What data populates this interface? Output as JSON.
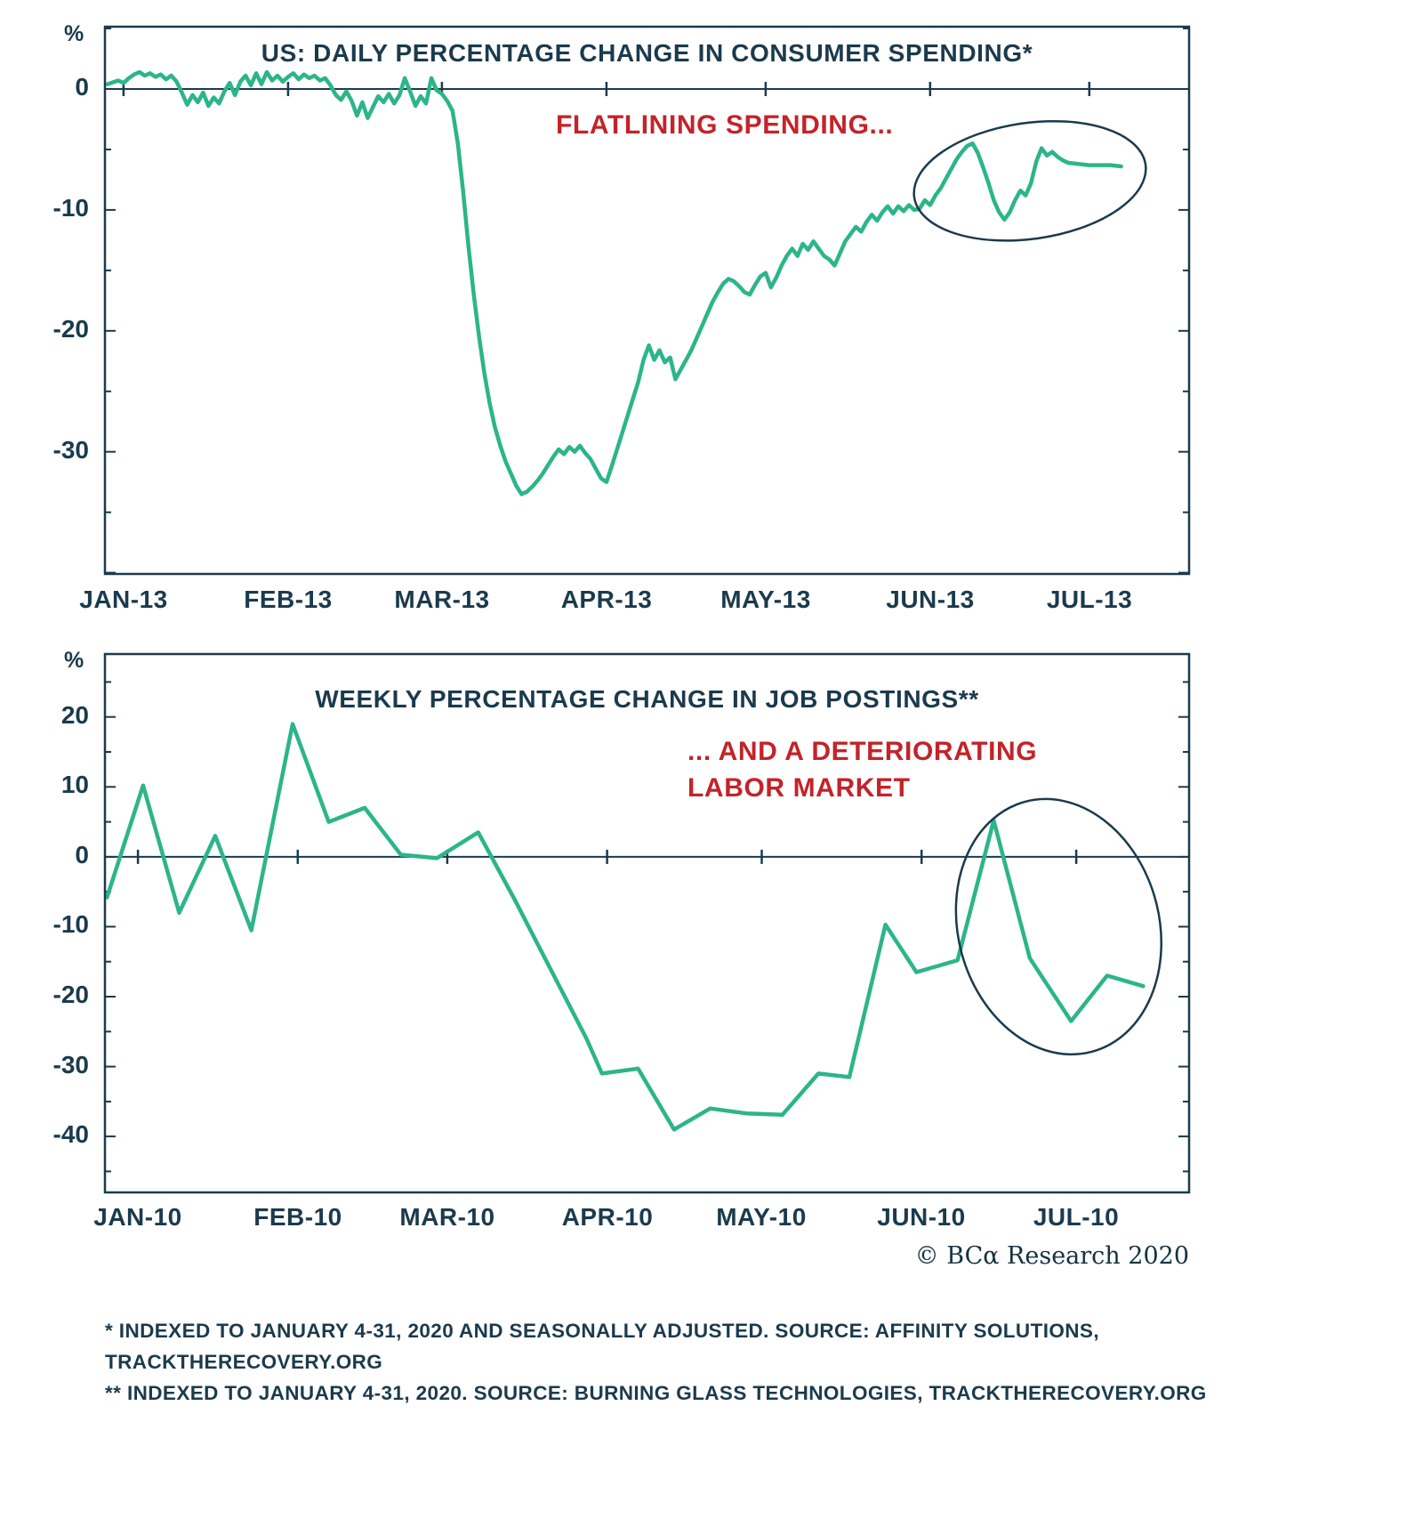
{
  "palette": {
    "line_green": "#2cb589",
    "navy": "#1b3a4d",
    "annotation_red": "#c3232a",
    "background": "#ffffff"
  },
  "chart_data": [
    {
      "type": "line",
      "title": "US: DAILY PERCENTAGE CHANGE IN CONSUMER SPENDING*",
      "unit_label": "%",
      "annotation": "FLATLINING SPENDING...",
      "line_color": "#2cb589",
      "legend_position": "none",
      "grid": false,
      "x_axis": {
        "tick_labels": [
          "JAN-13",
          "FEB-13",
          "MAR-13",
          "APR-13",
          "MAY-13",
          "JUN-13",
          "JUL-13"
        ],
        "tick_days": [
          0,
          31,
          60,
          91,
          121,
          152,
          182
        ],
        "range_days": [
          -3.5,
          200.8
        ]
      },
      "y_axis": {
        "ticks": [
          0,
          -10,
          -20,
          -30
        ],
        "range": [
          -40.1,
          5.15
        ]
      },
      "series": [
        {
          "name": "Daily percentage change in consumer spending",
          "id": "spending-line",
          "points": [
            [
              -3,
              0.4
            ],
            [
              -1,
              0.7
            ],
            [
              0,
              0.5
            ],
            [
              1,
              0.9
            ],
            [
              2,
              1.2
            ],
            [
              3,
              1.4
            ],
            [
              4,
              1.1
            ],
            [
              5,
              1.3
            ],
            [
              6,
              1.0
            ],
            [
              7,
              1.2
            ],
            [
              8,
              0.8
            ],
            [
              9,
              1.1
            ],
            [
              10,
              0.6
            ],
            [
              11,
              -0.3
            ],
            [
              12,
              -1.3
            ],
            [
              13,
              -0.5
            ],
            [
              14,
              -1.1
            ],
            [
              15,
              -0.3
            ],
            [
              16,
              -1.4
            ],
            [
              17,
              -0.7
            ],
            [
              18,
              -1.2
            ],
            [
              19,
              -0.2
            ],
            [
              20,
              0.5
            ],
            [
              21,
              -0.5
            ],
            [
              22,
              0.6
            ],
            [
              23,
              1.1
            ],
            [
              24,
              0.3
            ],
            [
              25,
              1.3
            ],
            [
              26,
              0.4
            ],
            [
              27,
              1.4
            ],
            [
              28,
              0.7
            ],
            [
              29,
              1.1
            ],
            [
              30,
              0.6
            ],
            [
              31,
              1.0
            ],
            [
              32,
              1.3
            ],
            [
              33,
              0.8
            ],
            [
              34,
              1.2
            ],
            [
              35,
              0.9
            ],
            [
              36,
              1.1
            ],
            [
              37,
              0.7
            ],
            [
              38,
              0.9
            ],
            [
              39,
              0.3
            ],
            [
              40,
              -0.5
            ],
            [
              41,
              -0.9
            ],
            [
              42,
              -0.2
            ],
            [
              43,
              -1.0
            ],
            [
              44,
              -2.2
            ],
            [
              45,
              -1.1
            ],
            [
              46,
              -2.4
            ],
            [
              47,
              -1.5
            ],
            [
              48,
              -0.6
            ],
            [
              49,
              -1.1
            ],
            [
              50,
              -0.4
            ],
            [
              51,
              -1.2
            ],
            [
              52,
              -0.5
            ],
            [
              53,
              0.9
            ],
            [
              54,
              -0.2
            ],
            [
              55,
              -1.4
            ],
            [
              56,
              -0.6
            ],
            [
              57,
              -1.2
            ],
            [
              58,
              0.9
            ],
            [
              59,
              -0.1
            ],
            [
              60,
              -0.4
            ],
            [
              61,
              -1.0
            ],
            [
              62,
              -1.8
            ],
            [
              63,
              -4.5
            ],
            [
              64,
              -8.5
            ],
            [
              65,
              -13.0
            ],
            [
              66,
              -17.0
            ],
            [
              67,
              -20.5
            ],
            [
              68,
              -23.5
            ],
            [
              69,
              -26.0
            ],
            [
              70,
              -28.0
            ],
            [
              71,
              -29.5
            ],
            [
              72,
              -30.8
            ],
            [
              73,
              -31.8
            ],
            [
              74,
              -32.8
            ],
            [
              75,
              -33.5
            ],
            [
              76,
              -33.3
            ],
            [
              77,
              -32.9
            ],
            [
              78,
              -32.4
            ],
            [
              79,
              -31.8
            ],
            [
              80,
              -31.1
            ],
            [
              81,
              -30.4
            ],
            [
              82,
              -29.8
            ],
            [
              83,
              -30.2
            ],
            [
              84,
              -29.6
            ],
            [
              85,
              -30.0
            ],
            [
              86,
              -29.5
            ],
            [
              87,
              -30.1
            ],
            [
              88,
              -30.6
            ],
            [
              89,
              -31.4
            ],
            [
              90,
              -32.2
            ],
            [
              91,
              -32.5
            ],
            [
              92,
              -31.2
            ],
            [
              93,
              -29.8
            ],
            [
              94,
              -28.4
            ],
            [
              95,
              -27.0
            ],
            [
              96,
              -25.6
            ],
            [
              97,
              -24.2
            ],
            [
              98,
              -22.4
            ],
            [
              99,
              -21.2
            ],
            [
              100,
              -22.4
            ],
            [
              101,
              -21.6
            ],
            [
              102,
              -22.6
            ],
            [
              103,
              -22.2
            ],
            [
              104,
              -24.0
            ],
            [
              105,
              -23.2
            ],
            [
              106,
              -22.4
            ],
            [
              107,
              -21.6
            ],
            [
              108,
              -20.6
            ],
            [
              109,
              -19.6
            ],
            [
              110,
              -18.6
            ],
            [
              111,
              -17.6
            ],
            [
              112,
              -16.8
            ],
            [
              113,
              -16.1
            ],
            [
              114,
              -15.7
            ],
            [
              115,
              -15.9
            ],
            [
              116,
              -16.3
            ],
            [
              117,
              -16.8
            ],
            [
              118,
              -17.0
            ],
            [
              119,
              -16.2
            ],
            [
              120,
              -15.5
            ],
            [
              121,
              -15.2
            ],
            [
              122,
              -16.4
            ],
            [
              123,
              -15.6
            ],
            [
              124,
              -14.6
            ],
            [
              125,
              -13.8
            ],
            [
              126,
              -13.2
            ],
            [
              127,
              -13.8
            ],
            [
              128,
              -12.8
            ],
            [
              129,
              -13.3
            ],
            [
              130,
              -12.6
            ],
            [
              131,
              -13.2
            ],
            [
              132,
              -13.8
            ],
            [
              133,
              -14.1
            ],
            [
              134,
              -14.6
            ],
            [
              135,
              -13.6
            ],
            [
              136,
              -12.6
            ],
            [
              137,
              -12.0
            ],
            [
              138,
              -11.4
            ],
            [
              139,
              -11.8
            ],
            [
              140,
              -11.0
            ],
            [
              141,
              -10.4
            ],
            [
              142,
              -10.9
            ],
            [
              143,
              -10.2
            ],
            [
              144,
              -9.7
            ],
            [
              145,
              -10.3
            ],
            [
              146,
              -9.7
            ],
            [
              147,
              -10.1
            ],
            [
              148,
              -9.6
            ],
            [
              149,
              -10.0
            ],
            [
              150,
              -9.9
            ],
            [
              151,
              -9.2
            ],
            [
              152,
              -9.6
            ],
            [
              153,
              -8.8
            ],
            [
              154,
              -8.2
            ],
            [
              155,
              -7.4
            ],
            [
              156,
              -6.6
            ],
            [
              157,
              -5.8
            ],
            [
              158,
              -5.2
            ],
            [
              159,
              -4.7
            ],
            [
              160,
              -4.5
            ],
            [
              161,
              -5.3
            ],
            [
              162,
              -6.5
            ],
            [
              163,
              -7.8
            ],
            [
              164,
              -9.2
            ],
            [
              165,
              -10.2
            ],
            [
              166,
              -10.8
            ],
            [
              167,
              -10.2
            ],
            [
              168,
              -9.2
            ],
            [
              169,
              -8.4
            ],
            [
              170,
              -8.8
            ],
            [
              171,
              -7.8
            ],
            [
              172,
              -6.0
            ],
            [
              173,
              -4.9
            ],
            [
              174,
              -5.5
            ],
            [
              175,
              -5.2
            ],
            [
              176,
              -5.6
            ],
            [
              177,
              -5.9
            ],
            [
              178,
              -6.1
            ],
            [
              180,
              -6.2
            ],
            [
              182,
              -6.3
            ],
            [
              184,
              -6.3
            ],
            [
              186,
              -6.3
            ],
            [
              188,
              -6.4
            ]
          ]
        }
      ],
      "highlight_ellipse": {
        "center_day": 170.8,
        "center_val": -7.6,
        "rx_days": 22,
        "ry_units": 4.8,
        "rotate_deg": -8
      }
    },
    {
      "type": "line",
      "title": "WEEKLY PERCENTAGE CHANGE IN JOB POSTINGS**",
      "unit_label": "%",
      "annotation_lines": [
        "... AND A DETERIORATING",
        "LABOR MARKET"
      ],
      "line_color": "#2cb589",
      "legend_position": "none",
      "grid": false,
      "x_axis": {
        "tick_labels": [
          "JAN-10",
          "FEB-10",
          "MAR-10",
          "APR-10",
          "MAY-10",
          "JUN-10",
          "JUL-10"
        ],
        "tick_days": [
          0,
          31,
          60,
          91,
          121,
          152,
          182
        ],
        "range_days": [
          -6.4,
          203.9
        ]
      },
      "y_axis": {
        "ticks": [
          20,
          10,
          0,
          -10,
          -20,
          -30,
          -40
        ],
        "range": [
          -48,
          29
        ]
      },
      "series": [
        {
          "name": "Weekly percentage change in job postings",
          "id": "job-postings-line",
          "points": [
            [
              -6,
              -5.8
            ],
            [
              1,
              10.2
            ],
            [
              8,
              -8.0
            ],
            [
              15,
              3.0
            ],
            [
              22,
              -10.5
            ],
            [
              30,
              19.0
            ],
            [
              37,
              5.0
            ],
            [
              44,
              7.0
            ],
            [
              51,
              0.3
            ],
            [
              58,
              -0.2
            ],
            [
              66,
              3.5
            ],
            [
              73,
              -6.0
            ],
            [
              80,
              -16.0
            ],
            [
              87,
              -26.0
            ],
            [
              90,
              -31.0
            ],
            [
              97,
              -30.3
            ],
            [
              104,
              -39.0
            ],
            [
              111,
              -36.0
            ],
            [
              118,
              -36.7
            ],
            [
              125,
              -36.9
            ],
            [
              132,
              -31.0
            ],
            [
              138,
              -31.5
            ],
            [
              145,
              -9.7
            ],
            [
              151,
              -16.5
            ],
            [
              159,
              -14.8
            ],
            [
              166,
              5.2
            ],
            [
              173,
              -14.5
            ],
            [
              181,
              -23.5
            ],
            [
              188,
              -17.0
            ],
            [
              195,
              -18.5
            ]
          ]
        }
      ],
      "highlight_ellipse": {
        "center_day": 178.6,
        "center_val": -10,
        "rx_days": 19.5,
        "ry_units": 18.5,
        "rotate_deg": -15
      }
    }
  ],
  "footer": {
    "copyright": "© BCα Research 2020",
    "footnotes": [
      "* INDEXED TO JANUARY 4-31, 2020 AND SEASONALLY ADJUSTED. SOURCE: AFFINITY SOLUTIONS,",
      "TRACKTHERECOVERY.ORG",
      "** INDEXED TO JANUARY 4-31,  2020. SOURCE: BURNING GLASS TECHNOLOGIES, TRACKTHERECOVERY.ORG"
    ]
  }
}
